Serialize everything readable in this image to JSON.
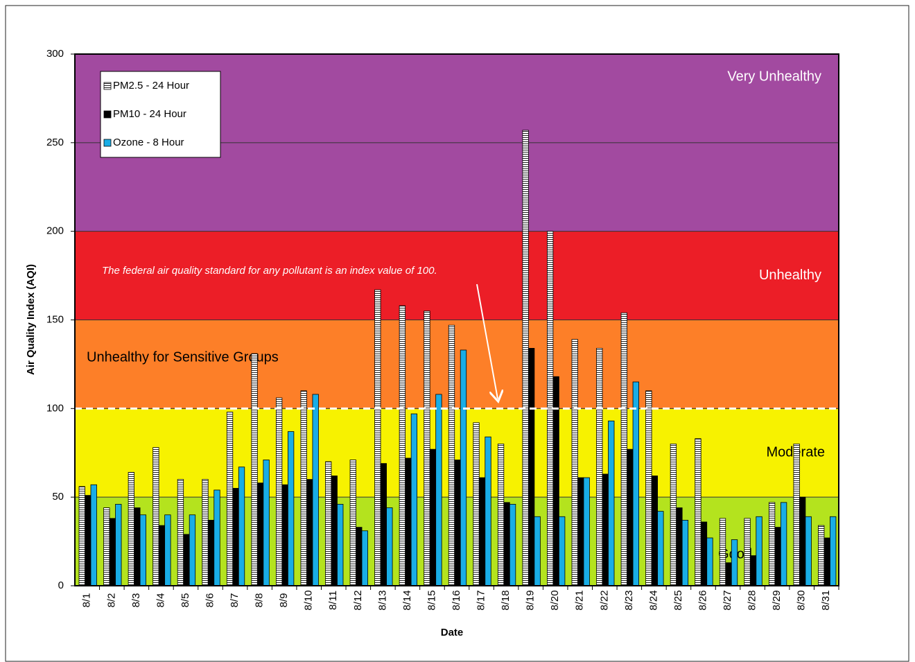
{
  "chart_data": {
    "type": "bar",
    "x_label": "Date",
    "y_label": "Air Quality Index (AQI)",
    "categories": [
      "8/1",
      "8/2",
      "8/3",
      "8/4",
      "8/5",
      "8/6",
      "8/7",
      "8/8",
      "8/9",
      "8/10",
      "8/11",
      "8/12",
      "8/13",
      "8/14",
      "8/15",
      "8/16",
      "8/17",
      "8/18",
      "8/19",
      "8/20",
      "8/21",
      "8/22",
      "8/23",
      "8/24",
      "8/25",
      "8/26",
      "8/27",
      "8/28",
      "8/29",
      "8/30",
      "8/31"
    ],
    "series": [
      {
        "name": "PM2.5 - 24 Hour",
        "color": "#ffffff",
        "pattern": "horizontal-stripes",
        "values": [
          56,
          44,
          64,
          78,
          60,
          60,
          98,
          131,
          106,
          110,
          70,
          71,
          167,
          158,
          155,
          147,
          92,
          80,
          257,
          200,
          139,
          134,
          154,
          110,
          80,
          83,
          38,
          38,
          47,
          80,
          34
        ]
      },
      {
        "name": "PM10 - 24 Hour",
        "color": "#000000",
        "values": [
          51,
          38,
          44,
          34,
          29,
          37,
          55,
          58,
          57,
          60,
          62,
          33,
          69,
          72,
          77,
          71,
          61,
          47,
          134,
          118,
          61,
          63,
          77,
          62,
          44,
          36,
          13,
          17,
          33,
          50,
          27
        ]
      },
      {
        "name": "Ozone - 8 Hour",
        "color": "#19ade6",
        "values": [
          57,
          46,
          40,
          40,
          40,
          54,
          67,
          71,
          87,
          108,
          46,
          31,
          44,
          97,
          108,
          133,
          84,
          46,
          39,
          39,
          61,
          93,
          115,
          42,
          37,
          27,
          26,
          39,
          47,
          39,
          39
        ]
      }
    ],
    "bands": [
      {
        "label": "Good",
        "from": 0,
        "to": 50,
        "color": "#b4e31e"
      },
      {
        "label": "Moderate",
        "from": 50,
        "to": 100,
        "color": "#f7f200"
      },
      {
        "label": "Unhealthy for Sensitive Groups",
        "from": 100,
        "to": 150,
        "color": "#fd7f28"
      },
      {
        "label": "Unhealthy",
        "from": 150,
        "to": 200,
        "color": "#ec1e27"
      },
      {
        "label": "Very Unhealthy",
        "from": 200,
        "to": 300,
        "color": "#a24aa0"
      }
    ],
    "standard_line": 100,
    "annotation": "The federal air quality standard for any pollutant is an index value of 100.",
    "ylim": [
      0,
      300
    ],
    "yticks": [
      0,
      50,
      100,
      150,
      200,
      250,
      300
    ],
    "grid": true,
    "legend": "top-left"
  }
}
